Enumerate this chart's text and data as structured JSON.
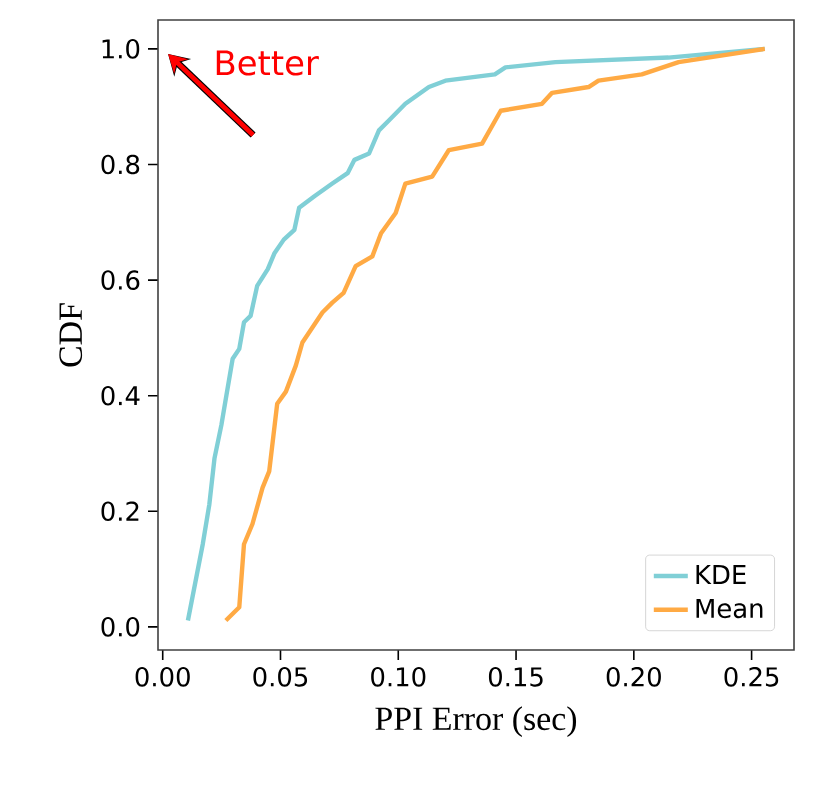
{
  "chart_data": {
    "type": "line",
    "xlabel": "PPI Error (sec)",
    "ylabel": "CDF",
    "xlim": [
      -0.002,
      0.268
    ],
    "ylim": [
      -0.04,
      1.05
    ],
    "xticks": [
      {
        "value": 0,
        "label": "0.00"
      },
      0.05,
      {
        "value": 0.1,
        "label": "0.10"
      },
      0.15,
      {
        "value": 0.2,
        "label": "0.20"
      },
      0.25
    ],
    "yticks": [
      {
        "value": 0,
        "label": "0.0"
      },
      0.2,
      0.4,
      0.6,
      0.8,
      {
        "value": 1,
        "label": "1.0"
      }
    ],
    "legend": "bottom right",
    "grid": false,
    "annotations": [
      "Better"
    ],
    "series": [
      {
        "name": "KDE",
        "color": "#80cfd6",
        "x": [
          0.0107,
          0.017,
          0.0198,
          0.022,
          0.0249,
          0.0268,
          0.0297,
          0.0325,
          0.0345,
          0.0373,
          0.0401,
          0.0446,
          0.0475,
          0.0514,
          0.0559,
          0.0579,
          0.0644,
          0.072,
          0.0785,
          0.0814,
          0.0876,
          0.0918,
          0.096,
          0.103,
          0.113,
          0.12,
          0.141,
          0.1455,
          0.1667,
          0.2147,
          0.2556
        ],
        "values": [
          0.011,
          0.143,
          0.212,
          0.292,
          0.349,
          0.395,
          0.464,
          0.481,
          0.527,
          0.538,
          0.59,
          0.619,
          0.647,
          0.67,
          0.687,
          0.725,
          0.745,
          0.767,
          0.785,
          0.808,
          0.819,
          0.859,
          0.876,
          0.905,
          0.934,
          0.945,
          0.956,
          0.968,
          0.977,
          0.985,
          1.0
        ]
      },
      {
        "name": "Mean",
        "color": "#ffaa44",
        "x": [
          0.0268,
          0.0325,
          0.0345,
          0.0381,
          0.0424,
          0.0452,
          0.0486,
          0.0523,
          0.0565,
          0.0593,
          0.0678,
          0.072,
          0.0768,
          0.0819,
          0.089,
          0.0927,
          0.0989,
          0.103,
          0.1144,
          0.1215,
          0.1356,
          0.1435,
          0.161,
          0.1653,
          0.1808,
          0.185,
          0.2034,
          0.219,
          0.2556
        ],
        "values": [
          0.011,
          0.034,
          0.143,
          0.178,
          0.241,
          0.269,
          0.386,
          0.407,
          0.452,
          0.492,
          0.544,
          0.561,
          0.578,
          0.624,
          0.641,
          0.681,
          0.716,
          0.767,
          0.779,
          0.825,
          0.836,
          0.893,
          0.905,
          0.924,
          0.934,
          0.945,
          0.956,
          0.977,
          1.0
        ]
      }
    ]
  }
}
